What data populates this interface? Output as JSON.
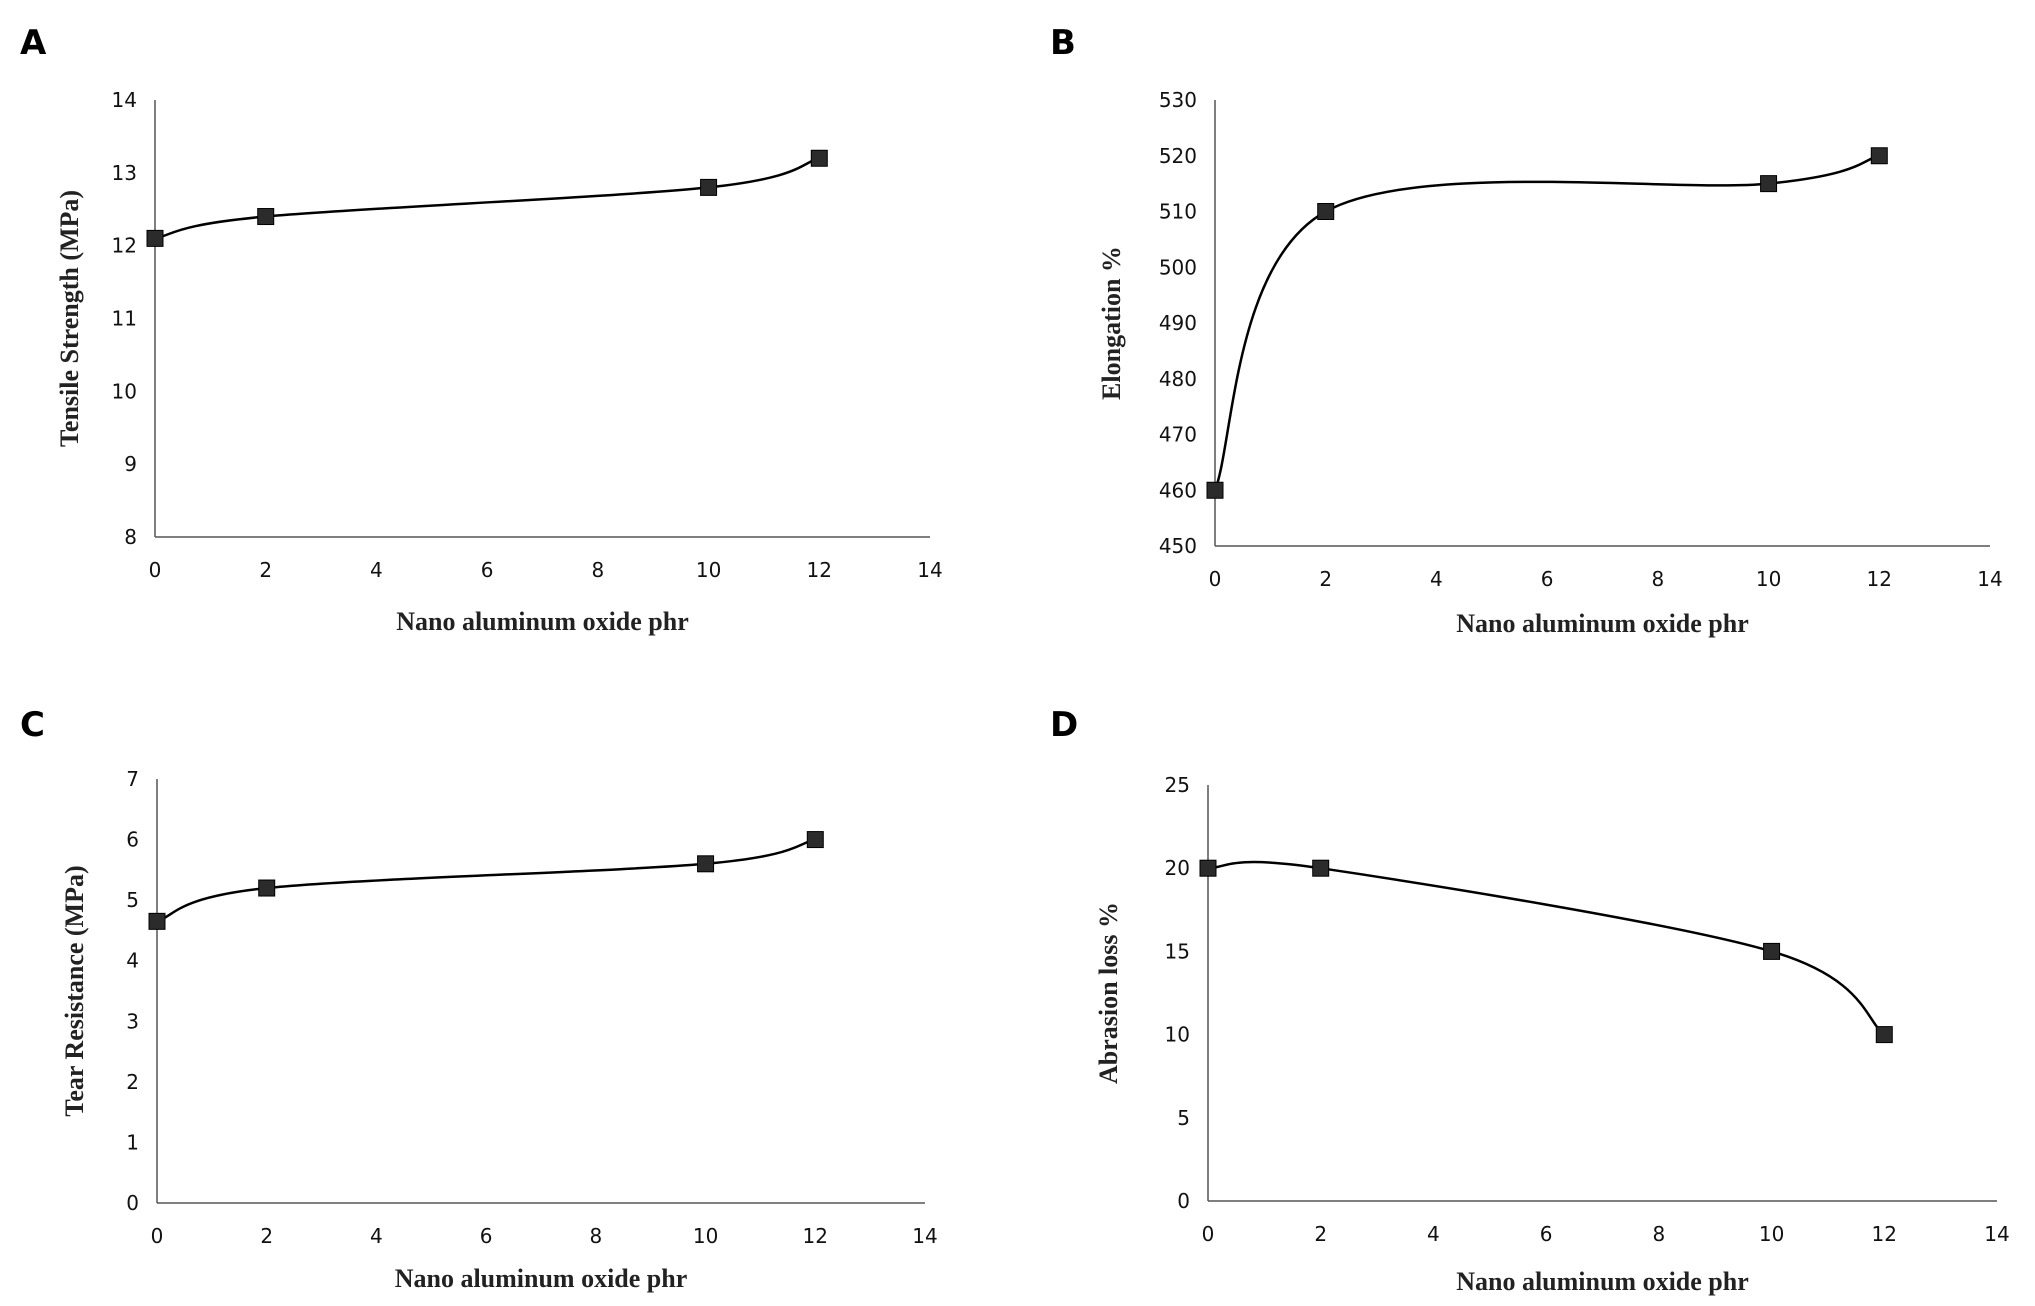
{
  "chart_data": [
    {
      "panel": "A",
      "type": "line",
      "xlabel": "Nano aluminum oxide phr",
      "ylabel": "Tensile Strength (MPa)",
      "xlim": [
        0,
        14
      ],
      "ylim": [
        8,
        14
      ],
      "xticks": [
        0,
        2,
        4,
        6,
        8,
        10,
        12,
        14
      ],
      "yticks": [
        8,
        9,
        10,
        11,
        12,
        13,
        14
      ],
      "grid": false,
      "smooth": true,
      "x": [
        0,
        2,
        10,
        12
      ],
      "y": [
        12.1,
        12.4,
        12.8,
        13.2
      ]
    },
    {
      "panel": "B",
      "type": "line",
      "xlabel": "Nano aluminum oxide phr",
      "ylabel": "Elongation %",
      "xlim": [
        0,
        14
      ],
      "ylim": [
        450,
        530
      ],
      "xticks": [
        0,
        2,
        4,
        6,
        8,
        10,
        12,
        14
      ],
      "yticks": [
        450,
        460,
        470,
        480,
        490,
        500,
        510,
        520,
        530
      ],
      "grid": false,
      "smooth": true,
      "x": [
        0,
        2,
        10,
        12
      ],
      "y": [
        460,
        510,
        515,
        520
      ]
    },
    {
      "panel": "C",
      "type": "line",
      "xlabel": "Nano aluminum oxide phr",
      "ylabel": "Tear Resistance (MPa)",
      "xlim": [
        0,
        14
      ],
      "ylim": [
        0,
        7
      ],
      "xticks": [
        0,
        2,
        4,
        6,
        8,
        10,
        12,
        14
      ],
      "yticks": [
        0,
        1,
        2,
        3,
        4,
        5,
        6,
        7
      ],
      "grid": false,
      "smooth": true,
      "x": [
        0,
        2,
        10,
        12
      ],
      "y": [
        4.65,
        5.2,
        5.6,
        6.0
      ]
    },
    {
      "panel": "D",
      "type": "line",
      "xlabel": "Nano aluminum oxide phr",
      "ylabel": "Abrasion loss %",
      "xlim": [
        0,
        14
      ],
      "ylim": [
        0,
        25
      ],
      "xticks": [
        0,
        2,
        4,
        6,
        8,
        10,
        12,
        14
      ],
      "yticks": [
        0,
        5,
        10,
        15,
        20,
        25
      ],
      "grid": false,
      "smooth": true,
      "x": [
        0,
        2,
        10,
        12
      ],
      "y": [
        20,
        20,
        15,
        10
      ]
    }
  ]
}
